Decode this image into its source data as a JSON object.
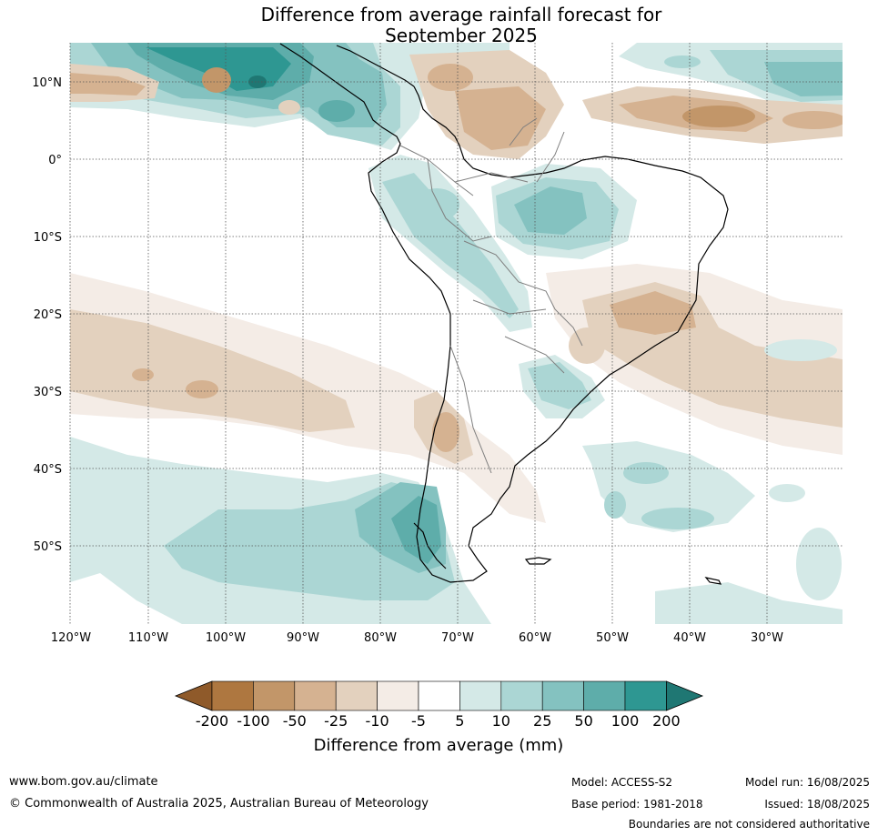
{
  "title_line1": "Difference from average rainfall forecast for",
  "title_line2": "September 2025",
  "lat_labels": [
    "10°N",
    "0°",
    "10°S",
    "20°S",
    "30°S",
    "40°S",
    "50°S"
  ],
  "lon_labels": [
    "120°W",
    "110°W",
    "100°W",
    "90°W",
    "80°W",
    "70°W",
    "60°W",
    "50°W",
    "40°W",
    "30°W"
  ],
  "colorbar": {
    "title": "Difference from average (mm)",
    "tick_labels": [
      "-200",
      "-100",
      "-50",
      "-25",
      "-10",
      "-5",
      "5",
      "10",
      "25",
      "50",
      "100",
      "200"
    ],
    "colors": [
      "#8f5a2a",
      "#ae7740",
      "#c29669",
      "#d5b291",
      "#e3d1be",
      "#f4ece6",
      "#ffffff",
      "#d4e9e7",
      "#abd6d4",
      "#84c2c0",
      "#5eadaa",
      "#2e9792",
      "#1f7773"
    ]
  },
  "footer": {
    "website": "www.bom.gov.au/climate",
    "copyright": "© Commonwealth of Australia 2025, Australian Bureau of Meteorology",
    "model": "Model: ACCESS-S2",
    "base_period": "Base period: 1981-2018",
    "model_run": "Model run: 16/08/2025",
    "issued": "Issued: 18/08/2025",
    "disclaimer": "Boundaries are not considered authoritative"
  }
}
